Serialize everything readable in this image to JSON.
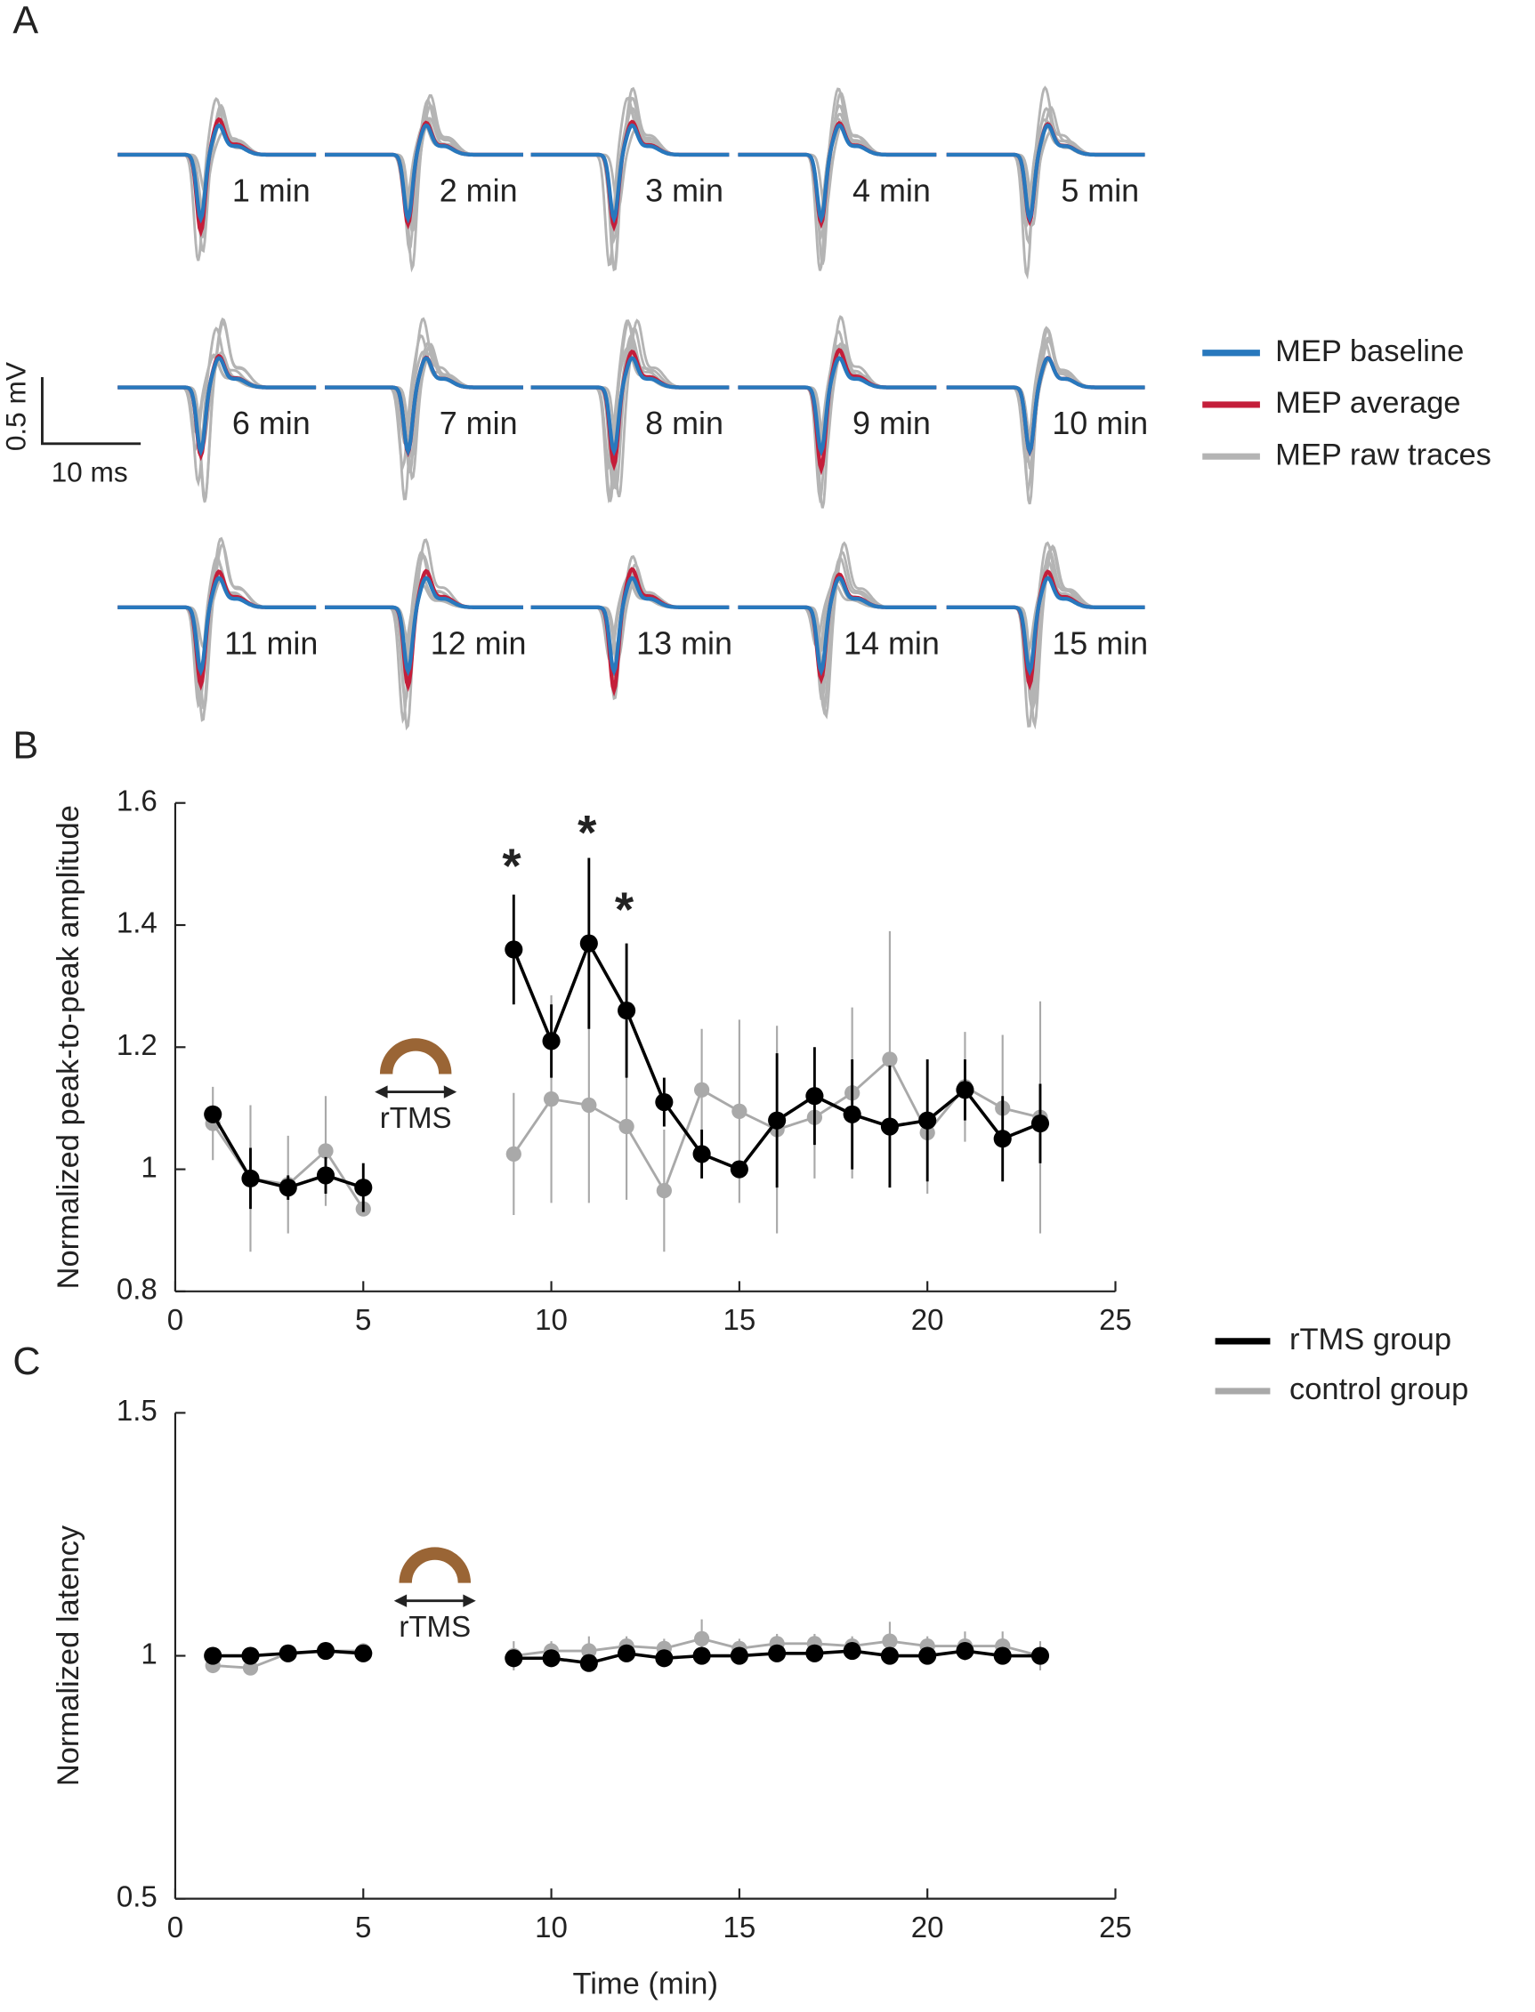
{
  "panel_labels": [
    "A",
    "B",
    "C"
  ],
  "traces": {
    "labels": [
      "1 min",
      "2 min",
      "3 min",
      "4 min",
      "5 min",
      "6 min",
      "7 min",
      "8 min",
      "9 min",
      "10 min",
      "11 min",
      "12 min",
      "13 min",
      "14 min",
      "15 min"
    ],
    "scale_bar": {
      "y": "0.5 mV",
      "x": "10 ms"
    },
    "legend": [
      {
        "name": "MEP baseline",
        "color": "#2878bd"
      },
      {
        "name": "MEP average",
        "color": "#c41e3a"
      },
      {
        "name": "MEP raw traces",
        "color": "#b4b4b4"
      }
    ]
  },
  "chart_data": [
    {
      "type": "line",
      "y_label": "Normalized peak-to-peak amplitude",
      "xlim": [
        0,
        25
      ],
      "xticks": [
        0,
        5,
        10,
        15,
        20,
        25
      ],
      "ylim": [
        0.8,
        1.6
      ],
      "yticks": [
        0.8,
        1,
        1.2,
        1.4,
        1.6
      ],
      "x": [
        1,
        2,
        3,
        4,
        5,
        6,
        7,
        8,
        9,
        10,
        11,
        12,
        13,
        14,
        15,
        16,
        17,
        18,
        19,
        20,
        21,
        22,
        23
      ],
      "series": [
        {
          "name": "control group",
          "color": "#a9a9a9",
          "values": [
            1.075,
            0.985,
            0.975,
            1.03,
            0.935,
            null,
            null,
            null,
            1.025,
            1.115,
            1.105,
            1.07,
            0.965,
            1.13,
            1.095,
            1.065,
            1.085,
            1.125,
            1.18,
            1.06,
            1.135,
            1.1,
            1.085
          ],
          "errors": [
            0.06,
            0.12,
            0.08,
            0.09,
            0.01,
            null,
            null,
            null,
            0.1,
            0.17,
            0.16,
            0.12,
            0.1,
            0.1,
            0.15,
            0.17,
            0.1,
            0.14,
            0.21,
            0.1,
            0.09,
            0.12,
            0.19
          ]
        },
        {
          "name": "rTMS group",
          "color": "#000000",
          "values": [
            1.09,
            0.985,
            0.97,
            0.99,
            0.97,
            null,
            null,
            null,
            1.36,
            1.21,
            1.37,
            1.26,
            1.11,
            1.025,
            1.0,
            1.08,
            1.12,
            1.09,
            1.07,
            1.08,
            1.13,
            1.05,
            1.075
          ],
          "errors": [
            0.01,
            0.05,
            0.02,
            0.03,
            0.04,
            null,
            null,
            null,
            0.09,
            0.06,
            0.14,
            0.11,
            0.04,
            0.04,
            0.01,
            0.11,
            0.08,
            0.09,
            0.1,
            0.1,
            0.05,
            0.07,
            0.065
          ]
        }
      ],
      "annotations": [
        "rTMS",
        "*",
        "*",
        "*"
      ]
    },
    {
      "type": "line",
      "x_label": "Time (min)",
      "y_label": "Normalized latency",
      "xlim": [
        0,
        25
      ],
      "xticks": [
        0,
        5,
        10,
        15,
        20,
        25
      ],
      "ylim": [
        0.5,
        1.5
      ],
      "yticks": [
        0.5,
        1,
        1.5
      ],
      "x": [
        1,
        2,
        3,
        4,
        5,
        6,
        7,
        8,
        9,
        10,
        11,
        12,
        13,
        14,
        15,
        16,
        17,
        18,
        19,
        20,
        21,
        22,
        23
      ],
      "series": [
        {
          "color": "#a9a9a9",
          "values": [
            0.98,
            0.975,
            1.005,
            1.01,
            1.01,
            null,
            null,
            null,
            1.0,
            1.01,
            1.01,
            1.02,
            1.015,
            1.035,
            1.015,
            1.025,
            1.025,
            1.02,
            1.03,
            1.02,
            1.02,
            1.02,
            1.0
          ],
          "errors": [
            0.01,
            0.01,
            0.01,
            0.01,
            0.01,
            null,
            null,
            null,
            0.03,
            0.02,
            0.03,
            0.02,
            0.02,
            0.04,
            0.02,
            0.02,
            0.02,
            0.02,
            0.04,
            0.02,
            0.03,
            0.03,
            0.03
          ]
        },
        {
          "color": "#000000",
          "values": [
            1.0,
            1.0,
            1.005,
            1.01,
            1.005,
            null,
            null,
            null,
            0.995,
            0.995,
            0.985,
            1.005,
            0.995,
            1.0,
            1.0,
            1.005,
            1.005,
            1.01,
            1.0,
            1.0,
            1.01,
            1.0,
            1.0
          ],
          "errors": [
            0.01,
            0.01,
            0.01,
            0.01,
            0.01,
            null,
            null,
            null,
            0.01,
            0.01,
            0.01,
            0.01,
            0.01,
            0.01,
            0.01,
            0.01,
            0.01,
            0.01,
            0.01,
            0.01,
            0.01,
            0.01,
            0.01
          ]
        }
      ],
      "annotations": [
        "rTMS"
      ]
    }
  ]
}
